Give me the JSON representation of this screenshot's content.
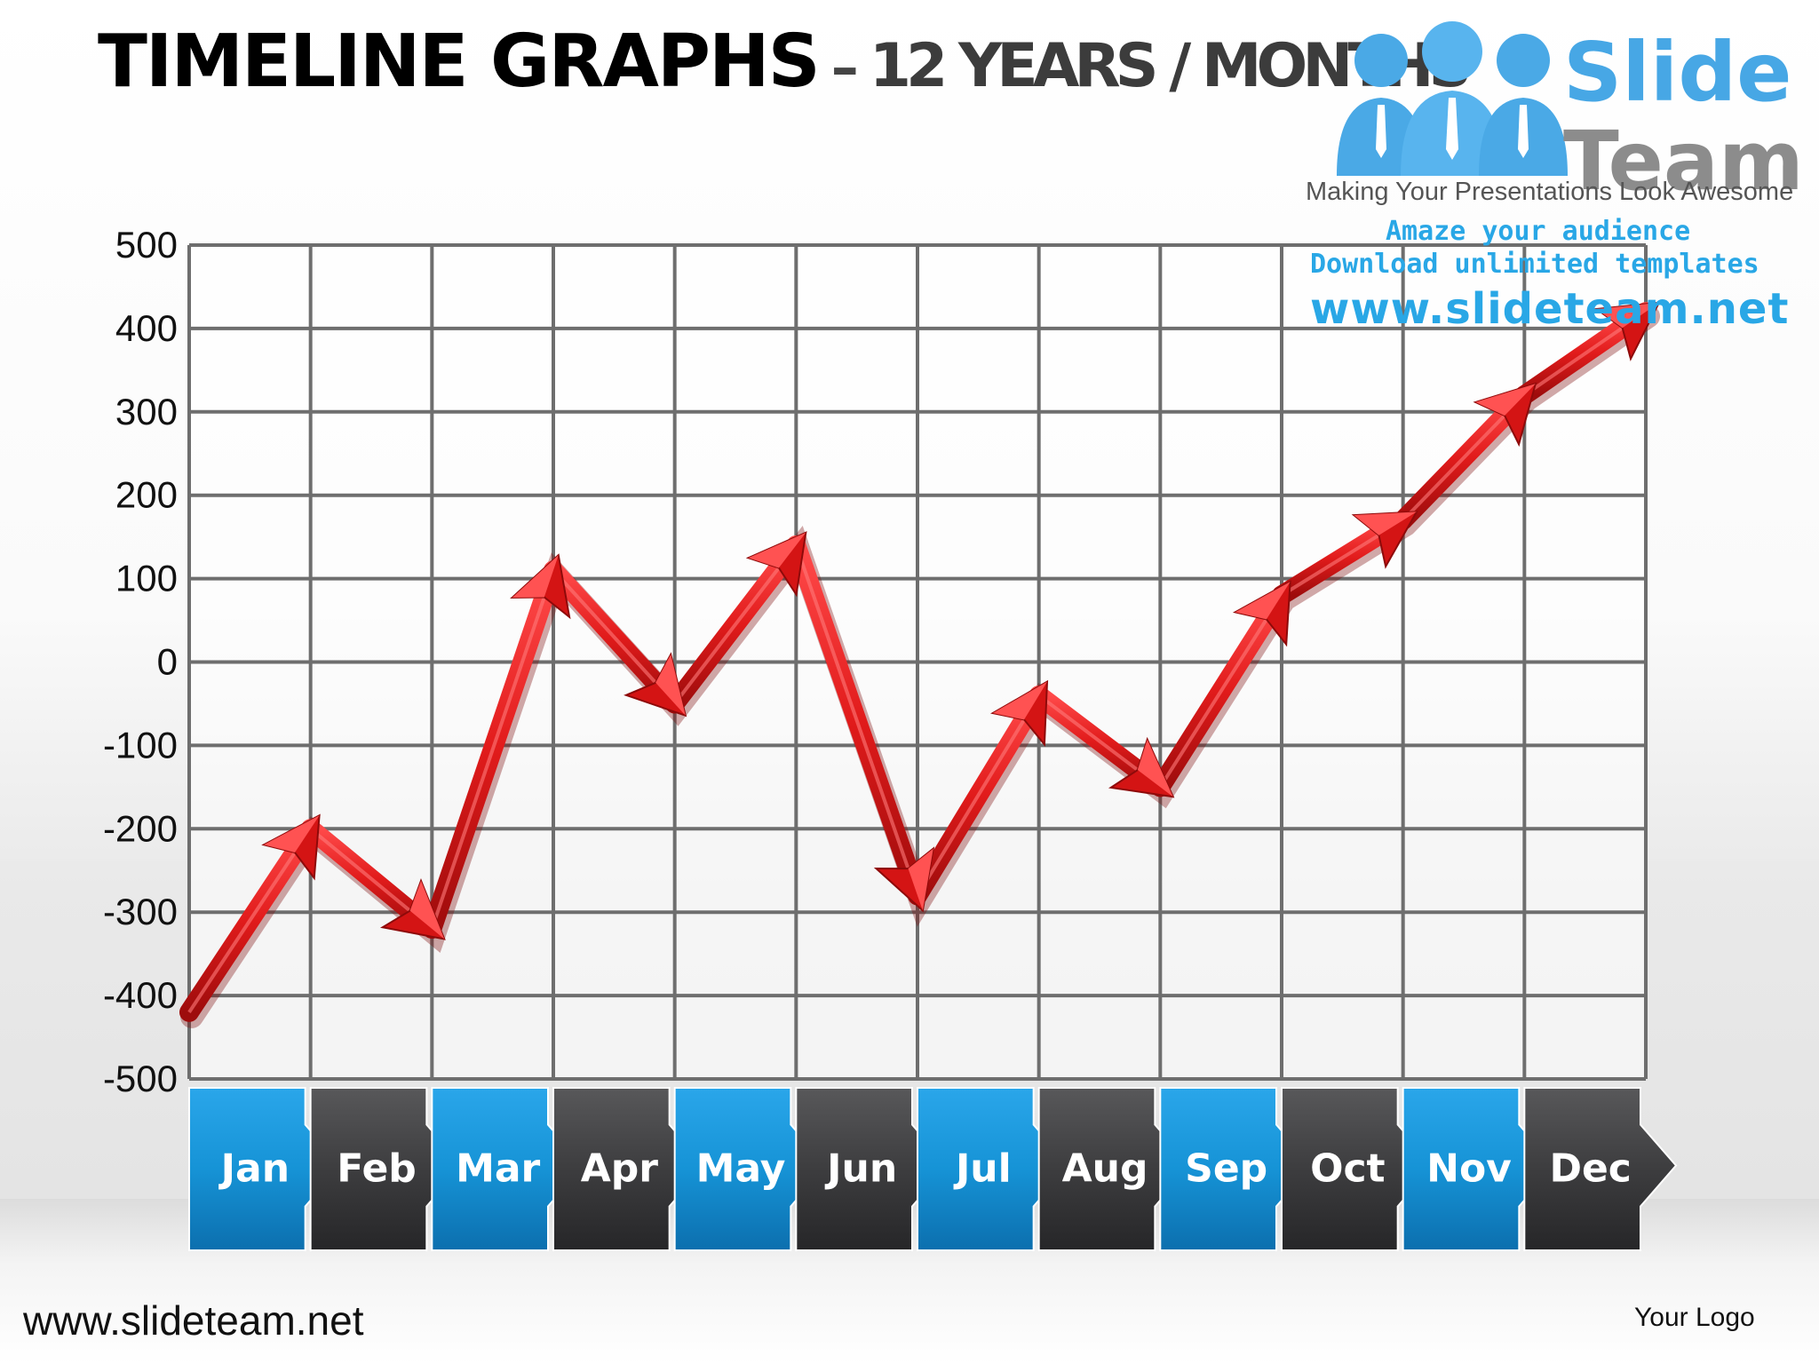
{
  "header": {
    "title_main": "TIMELINE  GRAPHS",
    "title_dash": "–",
    "title_sub": "12 YEARS / MONTHS"
  },
  "branding": {
    "slide_word": "Slide",
    "team_word": "Team",
    "tagline": "Making Your Presentations Look Awesome",
    "promo_line1": "Amaze your audience",
    "promo_line2": "Download unlimited templates",
    "promo_url": "www.slideteam.net"
  },
  "footer": {
    "url": "www.slideteam.net",
    "logo_text": "Your Logo"
  },
  "colors": {
    "line": "#e11b1b",
    "label_blue": "#1693d6",
    "label_dark": "#3d3d3f",
    "grid": "#6e6e6e"
  },
  "chart_data": {
    "type": "line",
    "categories": [
      "Jan",
      "Feb",
      "Mar",
      "Apr",
      "May",
      "Jun",
      "Jul",
      "Aug",
      "Sep",
      "Oct",
      "Nov",
      "Dec"
    ],
    "y_ticks": [
      "500",
      "400",
      "300",
      "200",
      "100",
      "0",
      "-100",
      "-200",
      "-300",
      "-400",
      "-500"
    ],
    "ylim": [
      -500,
      500
    ],
    "grid": true,
    "series": [
      {
        "points": [
          {
            "x": 0,
            "y": -420
          },
          {
            "x": 1,
            "y": -200
          },
          {
            "x": 2,
            "y": -320
          },
          {
            "x": 3,
            "y": 110
          },
          {
            "x": 4,
            "y": -50
          },
          {
            "x": 5,
            "y": 140
          },
          {
            "x": 6,
            "y": -280
          },
          {
            "x": 7,
            "y": -40
          },
          {
            "x": 8,
            "y": -150
          },
          {
            "x": 9,
            "y": 80
          },
          {
            "x": 10,
            "y": 170
          },
          {
            "x": 11,
            "y": 320
          },
          {
            "x": 12,
            "y": 420
          }
        ]
      }
    ]
  }
}
